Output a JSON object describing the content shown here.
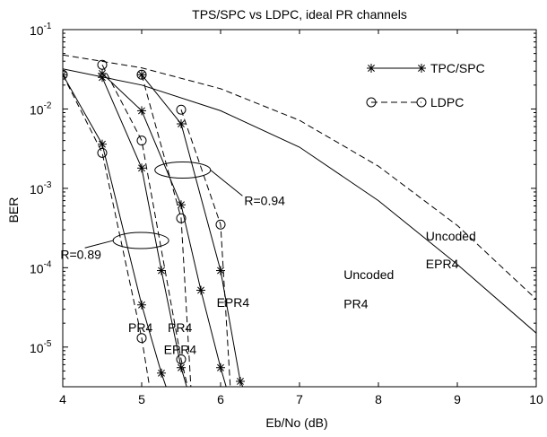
{
  "chart_data": {
    "type": "line",
    "title": "TPS/SPC vs LDPC, ideal PR channels",
    "xlabel": "Eb/No (dB)",
    "ylabel": "BER",
    "xlim": [
      4,
      10
    ],
    "ylim_log10": [
      -5.5,
      -1
    ],
    "yscale": "log",
    "x_ticks": [
      "4",
      "5",
      "6",
      "7",
      "8",
      "9",
      "10"
    ],
    "y_ticks": [
      {
        "base": "10",
        "exp": "-1",
        "value": 0.1
      },
      {
        "base": "10",
        "exp": "-2",
        "value": 0.01
      },
      {
        "base": "10",
        "exp": "-3",
        "value": 0.001
      },
      {
        "base": "10",
        "exp": "-4",
        "value": 0.0001
      },
      {
        "base": "10",
        "exp": "-5",
        "value": 1e-05
      }
    ],
    "grid": false,
    "legend": {
      "placement": "top-right",
      "entries": [
        {
          "label": "TPC/SPC",
          "style": "solid",
          "marker": "asterisk"
        },
        {
          "label": "LDPC",
          "style": "dashed",
          "marker": "circle"
        }
      ]
    },
    "series": [
      {
        "kind": "uncoded",
        "style": "solid",
        "marker": "none",
        "points": [
          [
            4,
            0.032
          ],
          [
            5,
            0.02
          ],
          [
            6,
            0.0095
          ],
          [
            7,
            0.0033
          ],
          [
            8,
            0.0007
          ],
          [
            9,
            0.00011
          ],
          [
            10,
            1.5e-05
          ]
        ]
      },
      {
        "kind": "uncoded",
        "style": "dashed",
        "marker": "none",
        "points": [
          [
            4,
            0.048
          ],
          [
            5,
            0.033
          ],
          [
            6,
            0.018
          ],
          [
            7,
            0.0072
          ],
          [
            8,
            0.0019
          ],
          [
            9,
            0.00034
          ],
          [
            10,
            4e-05
          ]
        ]
      },
      {
        "kind": "coded",
        "style": "solid",
        "marker": "asterisk",
        "points": [
          [
            4,
            0.027
          ],
          [
            4.5,
            0.0036
          ],
          [
            5,
            3.4e-05
          ],
          [
            5.25,
            4.7e-06
          ]
        ]
      },
      {
        "kind": "coded",
        "style": "solid",
        "marker": "asterisk",
        "points": [
          [
            4.5,
            0.025
          ],
          [
            5,
            0.0018
          ],
          [
            5.25,
            9.2e-05
          ],
          [
            5.5,
            5.5e-06
          ]
        ]
      },
      {
        "kind": "coded",
        "style": "solid",
        "marker": "asterisk",
        "points": [
          [
            4.5,
            0.028
          ],
          [
            5,
            0.0095
          ],
          [
            5.5,
            0.00062
          ],
          [
            5.75,
            5.2e-05
          ],
          [
            6,
            5.5e-06
          ]
        ]
      },
      {
        "kind": "coded",
        "style": "solid",
        "marker": "asterisk",
        "points": [
          [
            5,
            0.027
          ],
          [
            5.5,
            0.0065
          ],
          [
            6,
            9.2e-05
          ],
          [
            6.25,
            3.7e-06
          ]
        ]
      },
      {
        "kind": "coded",
        "style": "dashed",
        "marker": "circle",
        "points": [
          [
            4,
            0.027
          ],
          [
            4.5,
            0.0028
          ],
          [
            5,
            1.3e-05
          ]
        ]
      },
      {
        "kind": "coded",
        "style": "dashed",
        "marker": "circle",
        "points": [
          [
            4.5,
            0.036
          ],
          [
            5,
            0.004
          ],
          [
            5.5,
            7e-06
          ]
        ]
      },
      {
        "kind": "coded",
        "style": "dashed",
        "marker": "circle",
        "points": [
          [
            5,
            0.027
          ],
          [
            5.5,
            0.00042
          ]
        ]
      },
      {
        "kind": "coded",
        "style": "dashed",
        "marker": "circle",
        "points": [
          [
            5.5,
            0.0098
          ],
          [
            6,
            0.00035
          ]
        ]
      }
    ],
    "annotations": [
      {
        "id": "r094",
        "text": "R=0.94",
        "x": 6.3,
        "y": 0.00062
      },
      {
        "id": "r089",
        "text": "R=0.89",
        "x": 3.97,
        "y": 0.00013
      },
      {
        "id": "uncoded-pr4-line1",
        "text": "Uncoded",
        "x": 7.56,
        "y": 7.2e-05
      },
      {
        "id": "uncoded-pr4-line2",
        "text": "PR4",
        "x": 7.56,
        "y": 3.1e-05
      },
      {
        "id": "uncoded-epr4-line1",
        "text": "Uncoded",
        "x": 8.6,
        "y": 0.00022
      },
      {
        "id": "uncoded-epr4-line2",
        "text": "EPR4",
        "x": 8.6,
        "y": 9.8e-05
      },
      {
        "id": "pr4-a",
        "text": "PR4",
        "x": 4.83,
        "y": 1.55e-05
      },
      {
        "id": "pr4-b",
        "text": "PR4",
        "x": 5.33,
        "y": 1.55e-05
      },
      {
        "id": "epr4-a",
        "text": "EPR4",
        "x": 5.28,
        "y": 8.2e-06
      },
      {
        "id": "epr4-b",
        "text": "EPR4",
        "x": 5.95,
        "y": 3.2e-05
      }
    ],
    "ellipses": [
      {
        "cx": 5.52,
        "cy": 0.0017
      },
      {
        "cx": 4.99,
        "cy": 0.00022
      }
    ]
  }
}
